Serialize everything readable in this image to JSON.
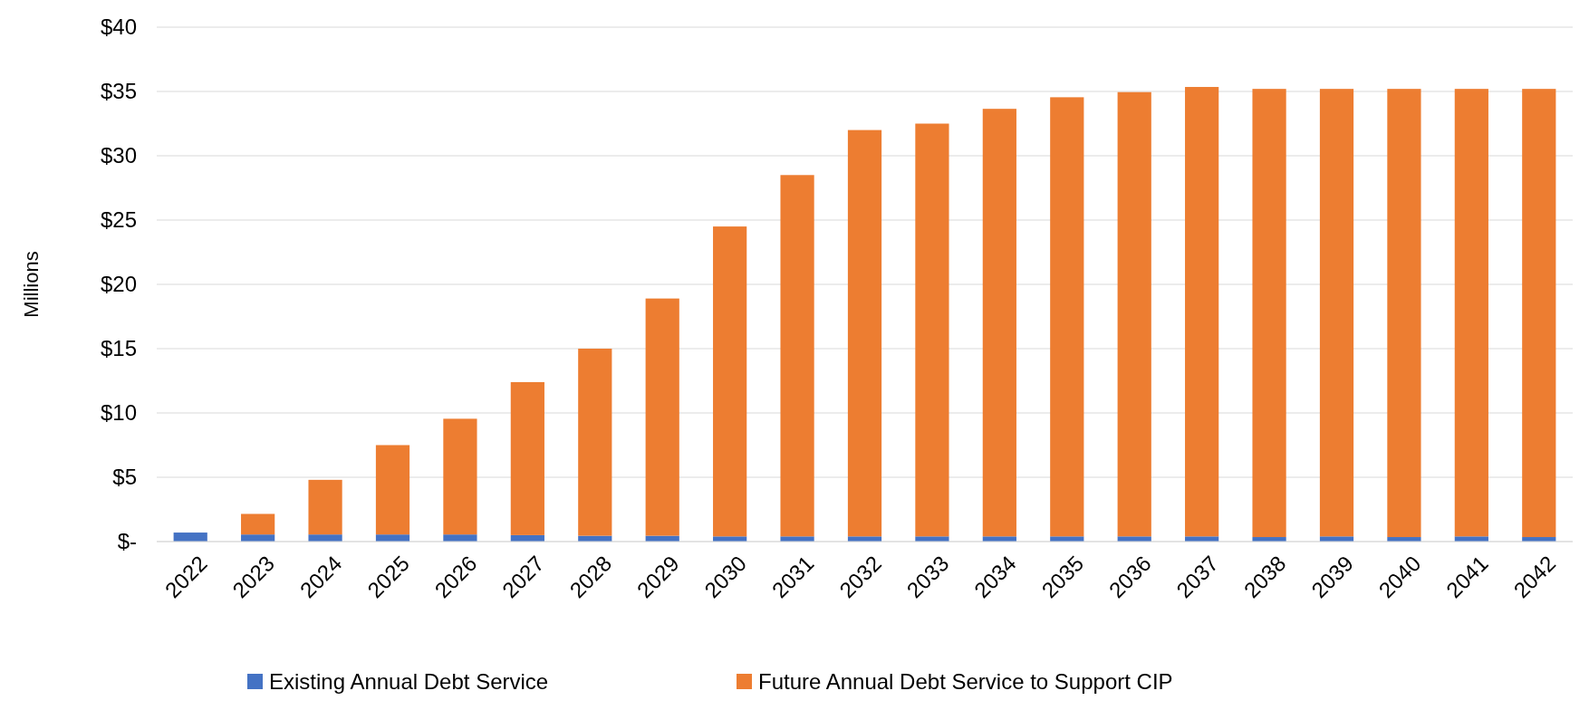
{
  "chart_data": {
    "type": "bar",
    "stacked": true,
    "ylabel": "Millions",
    "categories": [
      "2022",
      "2023",
      "2024",
      "2025",
      "2026",
      "2027",
      "2028",
      "2029",
      "2030",
      "2031",
      "2032",
      "2033",
      "2034",
      "2035",
      "2036",
      "2037",
      "2038",
      "2039",
      "2040",
      "2041",
      "2042"
    ],
    "series": [
      {
        "name": "Existing Annual Debt Service",
        "color": "#4472c4",
        "values": [
          0.7,
          0.55,
          0.55,
          0.55,
          0.55,
          0.5,
          0.45,
          0.45,
          0.4,
          0.4,
          0.4,
          0.4,
          0.4,
          0.4,
          0.4,
          0.4,
          0.35,
          0.4,
          0.35,
          0.4,
          0.35
        ]
      },
      {
        "name": "Future Annual Debt Service to Support CIP",
        "color": "#ed7d31",
        "values": [
          0,
          1.6,
          4.25,
          6.95,
          9.0,
          11.9,
          14.55,
          18.45,
          24.1,
          28.1,
          31.6,
          32.1,
          33.25,
          34.15,
          34.55,
          34.95,
          34.85,
          34.8,
          34.85,
          34.8,
          34.85
        ]
      }
    ],
    "ylim": [
      0,
      40
    ],
    "yticks": [
      {
        "value": 0,
        "label": "$-"
      },
      {
        "value": 5,
        "label": "$5"
      },
      {
        "value": 10,
        "label": "$10"
      },
      {
        "value": 15,
        "label": "$15"
      },
      {
        "value": 20,
        "label": "$20"
      },
      {
        "value": 25,
        "label": "$25"
      },
      {
        "value": 30,
        "label": "$30"
      },
      {
        "value": 35,
        "label": "$35"
      },
      {
        "value": 40,
        "label": "$40"
      }
    ],
    "grid": "y",
    "legend": "bottom"
  }
}
